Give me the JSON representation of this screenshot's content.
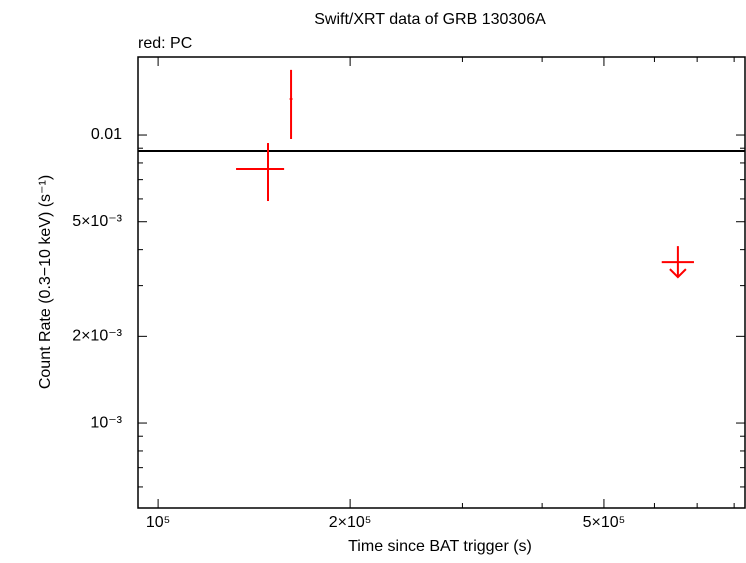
{
  "chart_data": {
    "type": "scatter",
    "title": "Swift/XRT data of GRB 130306A",
    "annotation": "red: PC",
    "x_label": "Time since BAT trigger (s)",
    "y_label": "Count Rate (0.3−10 keV) (s⁻¹)",
    "log_x": true,
    "log_y": true,
    "xlim": [
      93000,
      832000
    ],
    "ylim": [
      0.000507,
      0.01866
    ],
    "xticks": [
      {
        "value": 100000,
        "label": "10⁵"
      },
      {
        "value": 200000,
        "label": "2×10⁵"
      },
      {
        "value": 500000,
        "label": "5×10⁵"
      }
    ],
    "x_minor_ticks": [
      300000,
      400000,
      600000,
      700000,
      800000
    ],
    "yticks": [
      {
        "value": 0.001,
        "label": "10⁻³"
      },
      {
        "value": 0.002,
        "label": "2×10⁻³"
      },
      {
        "value": 0.005,
        "label": "5×10⁻³"
      },
      0.01
    ],
    "y_minor_ticks": [
      0.0006,
      0.0007,
      0.0008,
      0.0009,
      0.003,
      0.004,
      0.006,
      0.007,
      0.008,
      0.009
    ],
    "hline": {
      "value": 0.0088,
      "color": "#000000"
    },
    "series": [
      {
        "color": "#ff0000",
        "x": [
          148700,
          161600
        ],
        "x_low": [
          132500,
          160800
        ],
        "x_high": [
          157600,
          162400
        ],
        "values": [
          0.00762,
          0.01334
        ],
        "y_low": [
          0.0059,
          0.00969
        ],
        "y_high": [
          0.00938,
          0.01683
        ]
      },
      {
        "color": "#ff0000",
        "upper_limit": true,
        "x": [
          653000
        ],
        "x_low": [
          616000
        ],
        "x_high": [
          692000
        ],
        "values": [
          0.00362
        ]
      }
    ]
  }
}
